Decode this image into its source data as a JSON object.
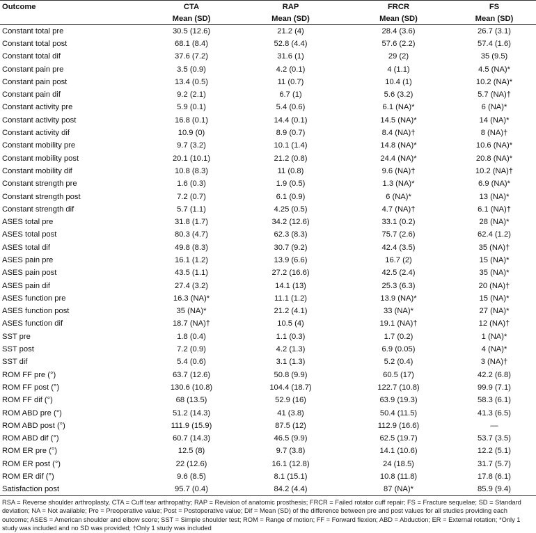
{
  "header": {
    "columns": [
      "Outcome",
      "CTA",
      "RAP",
      "FRCR",
      "FS"
    ],
    "subheader": [
      "Mean (SD)",
      "Mean (SD)",
      "Mean (SD)",
      "Mean (SD)"
    ]
  },
  "table": {
    "rows": [
      [
        "Constant total pre",
        "30.5 (12.6)",
        "21.2 (4)",
        "28.4 (3.6)",
        "26.7 (3.1)"
      ],
      [
        "Constant total post",
        "68.1 (8.4)",
        "52.8 (4.4)",
        "57.6 (2.2)",
        "57.4 (1.6)"
      ],
      [
        "Constant total dif",
        "37.6 (7.2)",
        "31.6 (1)",
        "29 (2)",
        "35 (9.5)"
      ],
      [
        "Constant pain pre",
        "3.5 (0.9)",
        "4.2 (0.1)",
        "4 (1.1)",
        "4.5 (NA)*"
      ],
      [
        "Constant pain post",
        "13.4 (0.5)",
        "11 (0.7)",
        "10.4 (1)",
        "10.2 (NA)*"
      ],
      [
        "Constant pain dif",
        "9.2 (2.1)",
        "6.7 (1)",
        "5.6 (3.2)",
        "5.7 (NA)†"
      ],
      [
        "Constant activity pre",
        "5.9 (0.1)",
        "5.4 (0.6)",
        "6.1 (NA)*",
        "6 (NA)*"
      ],
      [
        "Constant activity post",
        "16.8 (0.1)",
        "14.4 (0.1)",
        "14.5 (NA)*",
        "14 (NA)*"
      ],
      [
        "Constant activity dif",
        "10.9 (0)",
        "8.9 (0.7)",
        "8.4 (NA)†",
        "8 (NA)†"
      ],
      [
        "Constant mobility pre",
        "9.7 (3.2)",
        "10.1 (1.4)",
        "14.8 (NA)*",
        "10.6 (NA)*"
      ],
      [
        "Constant mobility post",
        "20.1 (10.1)",
        "21.2 (0.8)",
        "24.4 (NA)*",
        "20.8 (NA)*"
      ],
      [
        "Constant mobility dif",
        "10.8 (8.3)",
        "11 (0.8)",
        "9.6 (NA)†",
        "10.2 (NA)†"
      ],
      [
        "Constant strength pre",
        "1.6 (0.3)",
        "1.9 (0.5)",
        "1.3 (NA)*",
        "6.9 (NA)*"
      ],
      [
        "Constant strength post",
        "7.2 (0.7)",
        "6.1 (0.9)",
        "6 (NA)*",
        "13 (NA)*"
      ],
      [
        "Constant strength dif",
        "5.7 (1.1)",
        "4.25 (0.5)",
        "4.7 (NA)†",
        "6.1 (NA)†"
      ],
      [
        "ASES total pre",
        "31.8 (1.7)",
        "34.2 (12.6)",
        "33.1 (0.2)",
        "28 (NA)*"
      ],
      [
        "ASES total post",
        "80.3 (4.7)",
        "62.3 (8.3)",
        "75.7 (2.6)",
        "62.4 (1.2)"
      ],
      [
        "ASES total dif",
        "49.8 (8.3)",
        "30.7 (9.2)",
        "42.4 (3.5)",
        "35 (NA)†"
      ],
      [
        "ASES pain pre",
        "16.1 (1.2)",
        "13.9 (6.6)",
        "16.7 (2)",
        "15 (NA)*"
      ],
      [
        "ASES pain post",
        "43.5 (1.1)",
        "27.2 (16.6)",
        "42.5 (2.4)",
        "35 (NA)*"
      ],
      [
        "ASES pain dif",
        "27.4 (3.2)",
        "14.1 (13)",
        "25.3 (6.3)",
        "20 (NA)†"
      ],
      [
        "ASES function pre",
        "16.3 (NA)*",
        "11.1 (1.2)",
        "13.9 (NA)*",
        "15 (NA)*"
      ],
      [
        "ASES function post",
        "35 (NA)*",
        "21.2 (4.1)",
        "33 (NA)*",
        "27 (NA)*"
      ],
      [
        "ASES function dif",
        "18.7 (NA)†",
        "10.5 (4)",
        "19.1 (NA)†",
        "12 (NA)†"
      ],
      [
        "SST pre",
        "1.8 (0.4)",
        "1.1 (0.3)",
        "1.7 (0.2)",
        "1 (NA)*"
      ],
      [
        "SST post",
        "7.2 (0.9)",
        "4.2 (1.3)",
        "6.9 (0.05)",
        "4 (NA)*"
      ],
      [
        "SST dif",
        "5.4 (0.6)",
        "3.1 (1.3)",
        "5.2 (0.4)",
        "3 (NA)†"
      ],
      [
        "ROM FF pre (°)",
        "63.7 (12.6)",
        "50.8 (9.9)",
        "60.5 (17)",
        "42.2 (6.8)"
      ],
      [
        "ROM FF post (°)",
        "130.6 (10.8)",
        "104.4 (18.7)",
        "122.7 (10.8)",
        "99.9 (7.1)"
      ],
      [
        "ROM FF dif (°)",
        "68 (13.5)",
        "52.9 (16)",
        "63.9 (19.3)",
        "58.3 (6.1)"
      ],
      [
        "ROM ABD pre (°)",
        "51.2 (14.3)",
        "41 (3.8)",
        "50.4 (11.5)",
        "41.3 (6.5)"
      ],
      [
        "ROM ABD post (°)",
        "111.9 (15.9)",
        "87.5 (12)",
        "112.9 (16.6)",
        "—"
      ],
      [
        "ROM ABD dif (°)",
        "60.7 (14.3)",
        "46.5 (9.9)",
        "62.5 (19.7)",
        "53.7 (3.5)"
      ],
      [
        "ROM ER pre (°)",
        "12.5 (8)",
        "9.7 (3.8)",
        "14.1 (10.6)",
        "12.2 (5.1)"
      ],
      [
        "ROM ER post (°)",
        "22 (12.6)",
        "16.1 (12.8)",
        "24 (18.5)",
        "31.7 (5.7)"
      ],
      [
        "ROM ER dif (°)",
        "9.6 (8.5)",
        "8.1 (15.1)",
        "10.8 (11.8)",
        "17.8 (6.1)"
      ],
      [
        "Satisfaction post",
        "95.7 (0.4)",
        "84.2 (4.4)",
        "87 (NA)*",
        "85.9 (9.4)"
      ]
    ]
  },
  "footnote": "RSA = Reverse shoulder arthroplasty, CTA = Cuff tear arthropathy; RAP = Revision of anatomic prosthesis; FRCR = Failed rotator cuff repair; FS = Fracture sequelae; SD = Standard deviation; NA = Not available; Pre = Preoperative value; Post = Postoperative value; Dif = Mean (SD) of the difference between pre and post values for all studies providing each outcome; ASES = American shoulder and elbow score; SST = Simple shoulder test; ROM = Range of motion; FF = Forward flexion; ABD = Abduction; ER = External rotation; *Only 1 study was included and no SD was provided; †Only 1 study was included"
}
